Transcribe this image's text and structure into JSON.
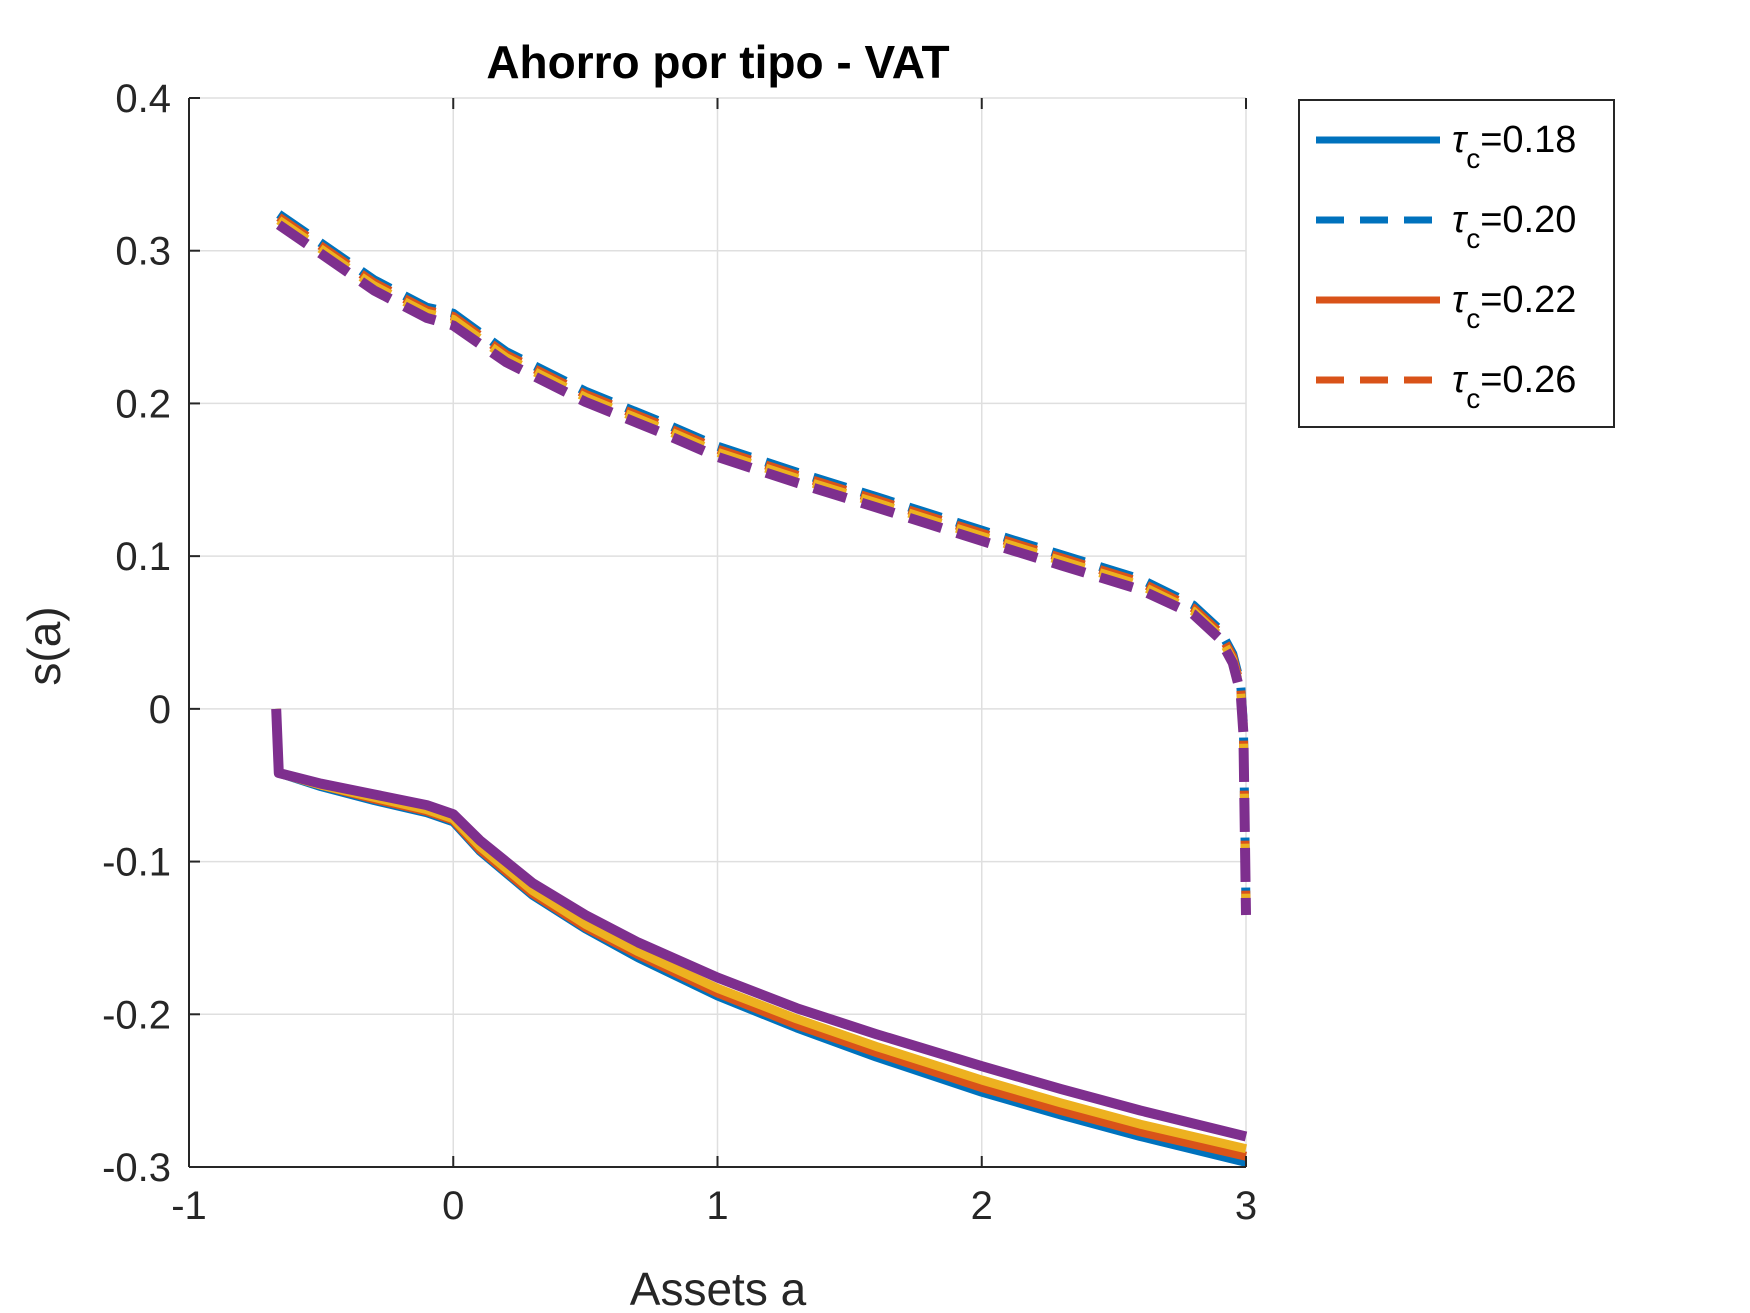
{
  "chart_data": {
    "type": "line",
    "title": "Ahorro por tipo - VAT",
    "xlabel": "Assets a",
    "ylabel": "s(a)",
    "xlim": [
      -1,
      3
    ],
    "ylim": [
      -0.3,
      0.4
    ],
    "xticks": [
      -1,
      0,
      1,
      2,
      3
    ],
    "yticks": [
      -0.3,
      -0.2,
      -0.1,
      0,
      0.1,
      0.2,
      0.3,
      0.4
    ],
    "xtick_labels": [
      "-1",
      "0",
      "1",
      "2",
      "3"
    ],
    "ytick_labels": [
      "-0.3",
      "-0.2",
      "-0.1",
      "0",
      "0.1",
      "0.2",
      "0.3",
      "0.4"
    ],
    "grid": true,
    "legend_position": "outside top-right",
    "legend": [
      {
        "symbol": "τ",
        "sub": "c",
        "value": "=0.18",
        "color": "#0072BD",
        "dash": "solid"
      },
      {
        "symbol": "τ",
        "sub": "c",
        "value": "=0.20",
        "color": "#0072BD",
        "dash": "dashed"
      },
      {
        "symbol": "τ",
        "sub": "c",
        "value": "=0.22",
        "color": "#D95319",
        "dash": "solid"
      },
      {
        "symbol": "τ",
        "sub": "c",
        "value": "=0.26",
        "color": "#D95319",
        "dash": "dashed"
      }
    ],
    "series": [
      {
        "color": "#0072BD",
        "dash": "solid",
        "x": [
          -0.67,
          -0.66,
          -0.5,
          -0.3,
          -0.1,
          0.0,
          0.1,
          0.3,
          0.5,
          0.7,
          1.0,
          1.3,
          1.6,
          2.0,
          2.3,
          2.6,
          3.0
        ],
        "y": [
          0.0,
          -0.042,
          -0.051,
          -0.06,
          -0.068,
          -0.074,
          -0.093,
          -0.122,
          -0.144,
          -0.163,
          -0.188,
          -0.209,
          -0.228,
          -0.251,
          -0.266,
          -0.28,
          -0.297
        ]
      },
      {
        "color": "#0072BD",
        "dash": "dashed",
        "x": [
          -0.66,
          -0.5,
          -0.3,
          -0.1,
          0.0,
          0.2,
          0.5,
          0.8,
          1.0,
          1.3,
          1.6,
          2.0,
          2.3,
          2.6,
          2.8,
          2.9,
          2.95,
          2.98,
          2.99,
          3.0
        ],
        "y": [
          0.324,
          0.305,
          0.281,
          0.263,
          0.259,
          0.234,
          0.208,
          0.187,
          0.172,
          0.155,
          0.139,
          0.117,
          0.101,
          0.085,
          0.068,
          0.052,
          0.036,
          0.016,
          -0.01,
          -0.13
        ]
      },
      {
        "color": "#D95319",
        "dash": "solid",
        "x": [
          -0.67,
          -0.66,
          -0.5,
          -0.3,
          -0.1,
          0.0,
          0.1,
          0.3,
          0.5,
          0.7,
          1.0,
          1.3,
          1.6,
          2.0,
          2.3,
          2.6,
          3.0
        ],
        "y": [
          0.0,
          -0.042,
          -0.05,
          -0.059,
          -0.067,
          -0.073,
          -0.092,
          -0.121,
          -0.143,
          -0.161,
          -0.186,
          -0.207,
          -0.225,
          -0.248,
          -0.263,
          -0.277,
          -0.293
        ]
      },
      {
        "color": "#D95319",
        "dash": "dashed",
        "x": [
          -0.66,
          -0.5,
          -0.3,
          -0.1,
          0.0,
          0.2,
          0.5,
          0.8,
          1.0,
          1.3,
          1.6,
          2.0,
          2.3,
          2.6,
          2.8,
          2.9,
          2.95,
          2.98,
          2.99,
          3.0
        ],
        "y": [
          0.322,
          0.303,
          0.279,
          0.261,
          0.257,
          0.232,
          0.206,
          0.185,
          0.17,
          0.153,
          0.137,
          0.115,
          0.099,
          0.083,
          0.066,
          0.05,
          0.034,
          0.014,
          -0.012,
          -0.13
        ]
      },
      {
        "color": "#EDB120",
        "dash": "solid",
        "x": [
          -0.67,
          -0.66,
          -0.5,
          -0.3,
          -0.1,
          0.0,
          0.1,
          0.3,
          0.5,
          0.7,
          1.0,
          1.3,
          1.6,
          2.0,
          2.3,
          2.6,
          3.0
        ],
        "y": [
          0.0,
          -0.042,
          -0.05,
          -0.058,
          -0.066,
          -0.072,
          -0.09,
          -0.119,
          -0.141,
          -0.159,
          -0.183,
          -0.203,
          -0.221,
          -0.243,
          -0.258,
          -0.272,
          -0.288
        ]
      },
      {
        "color": "#EDB120",
        "dash": "dashed",
        "x": [
          -0.66,
          -0.5,
          -0.3,
          -0.1,
          0.0,
          0.2,
          0.5,
          0.8,
          1.0,
          1.3,
          1.6,
          2.0,
          2.3,
          2.6,
          2.8,
          2.9,
          2.95,
          2.98,
          2.99,
          3.0
        ],
        "y": [
          0.32,
          0.301,
          0.277,
          0.259,
          0.255,
          0.23,
          0.204,
          0.183,
          0.168,
          0.151,
          0.135,
          0.113,
          0.097,
          0.081,
          0.064,
          0.048,
          0.032,
          0.012,
          -0.014,
          -0.13
        ]
      },
      {
        "color": "#7E2F8E",
        "dash": "solid",
        "x": [
          -0.67,
          -0.66,
          -0.5,
          -0.3,
          -0.1,
          0.0,
          0.1,
          0.3,
          0.5,
          0.7,
          1.0,
          1.3,
          1.6,
          2.0,
          2.3,
          2.6,
          3.0
        ],
        "y": [
          0.0,
          -0.042,
          -0.049,
          -0.056,
          -0.063,
          -0.069,
          -0.086,
          -0.114,
          -0.135,
          -0.153,
          -0.176,
          -0.196,
          -0.213,
          -0.234,
          -0.249,
          -0.263,
          -0.28
        ]
      },
      {
        "color": "#7E2F8E",
        "dash": "dashed",
        "x": [
          -0.66,
          -0.5,
          -0.3,
          -0.1,
          0.0,
          0.2,
          0.5,
          0.8,
          1.0,
          1.3,
          1.6,
          2.0,
          2.3,
          2.6,
          2.8,
          2.9,
          2.95,
          2.98,
          2.99,
          3.0
        ],
        "y": [
          0.317,
          0.298,
          0.274,
          0.256,
          0.251,
          0.227,
          0.201,
          0.18,
          0.165,
          0.148,
          0.132,
          0.11,
          0.094,
          0.078,
          0.062,
          0.046,
          0.03,
          0.01,
          -0.016,
          -0.135
        ]
      }
    ]
  }
}
